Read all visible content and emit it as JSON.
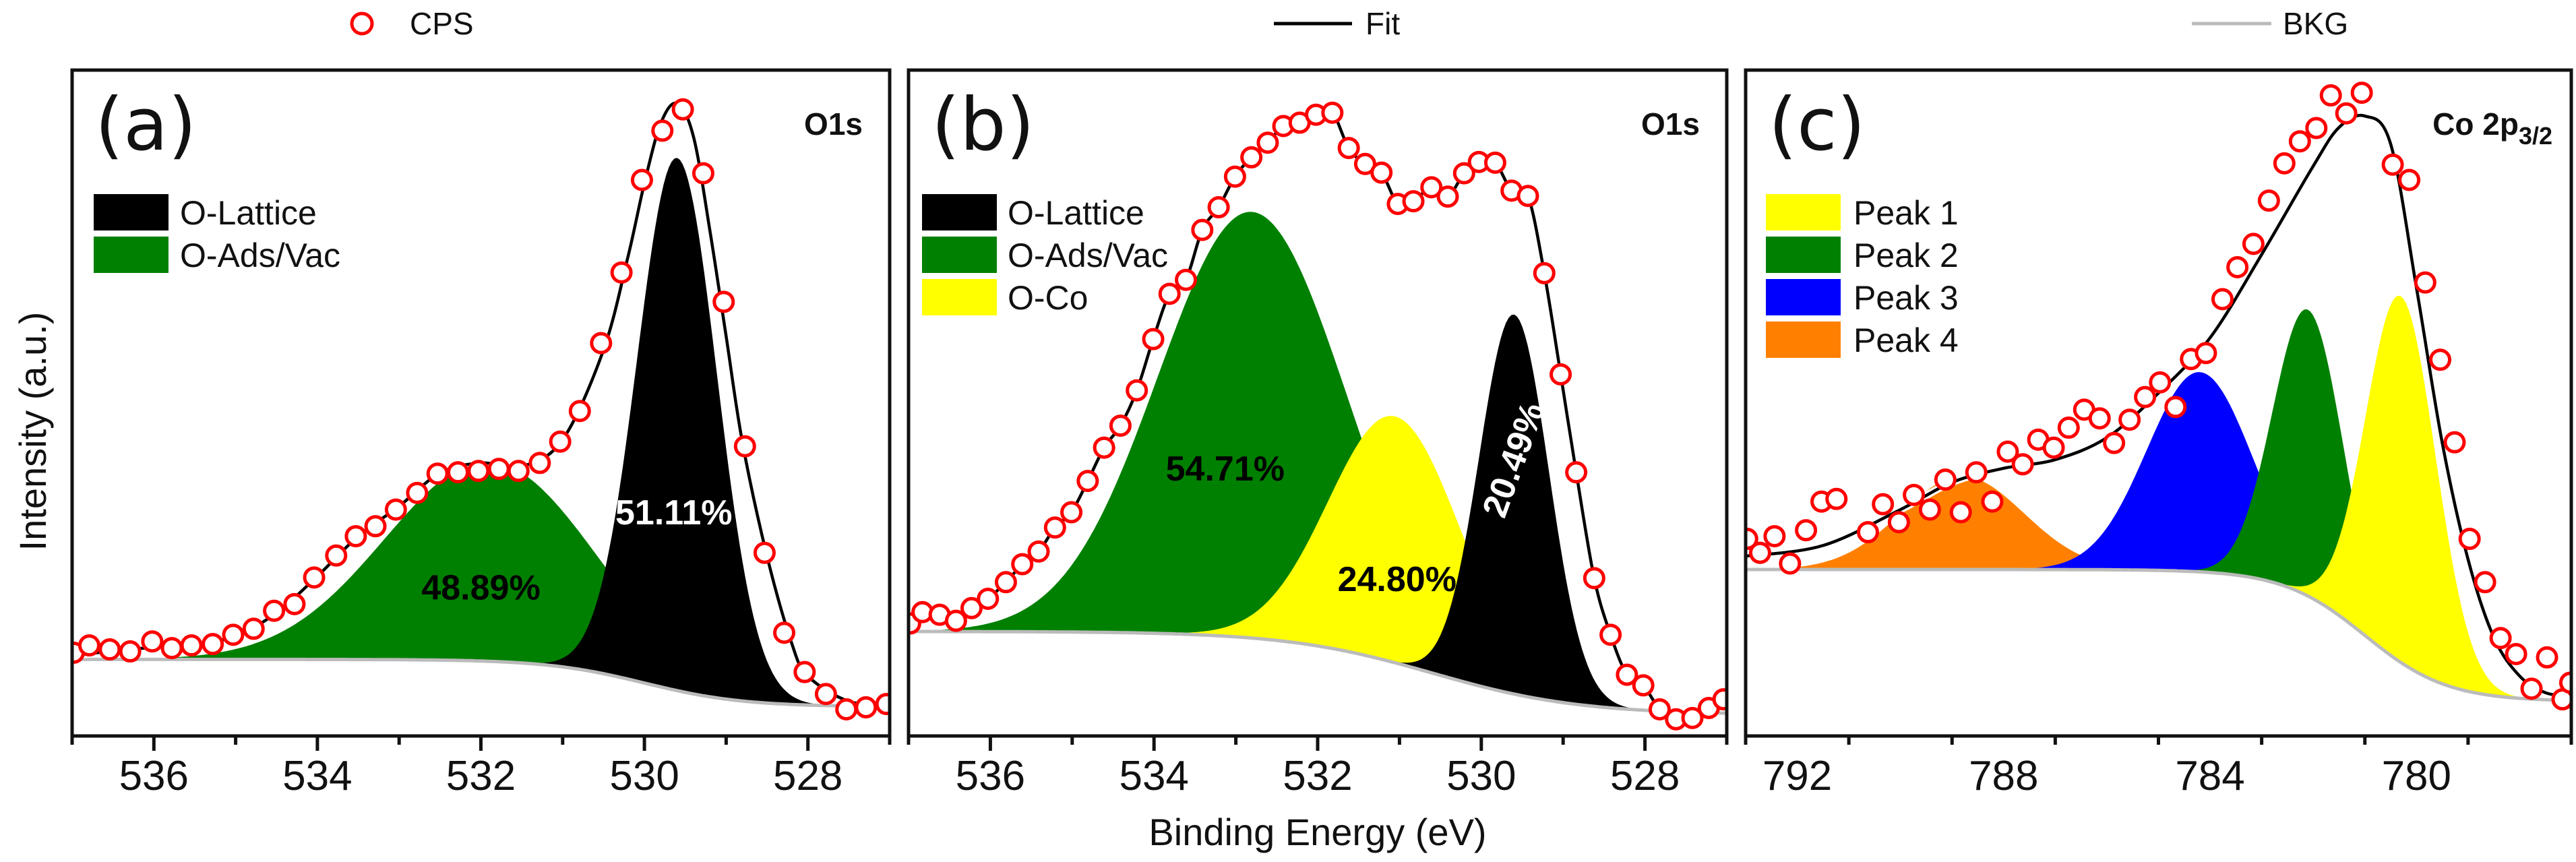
{
  "legend": {
    "cps_label": "CPS",
    "fit_label": "Fit",
    "bkg_label": "BKG",
    "cps_color": "#ff0000",
    "fit_color": "#000000",
    "bkg_color": "#bbbbbb"
  },
  "axes": {
    "xlabel": "Binding Energy (eV)",
    "ylabel": "Intensity (a.u.)"
  },
  "chart_data": [
    {
      "type": "area",
      "panel_label": "(a)",
      "core_level": "O1s",
      "xlim": [
        537,
        527
      ],
      "ylim": [
        0,
        1
      ],
      "xticks": [
        536,
        534,
        532,
        530,
        528
      ],
      "xtick_labels": [
        "536",
        "534",
        "532",
        "530",
        "528"
      ],
      "background": {
        "high": 0.115,
        "low": 0.044,
        "center": 530.0,
        "width": 0.6
      },
      "components": [
        {
          "name": "O-Ads/Vac",
          "color": "#008000",
          "center": 531.9,
          "height": 0.3,
          "fwhm": 3.0,
          "percent": "48.89%",
          "percent_color": "#000000",
          "label_at": [
            532.0,
            0.223
          ]
        },
        {
          "name": "O-Lattice",
          "color": "#000000",
          "center": 529.6,
          "height": 0.8,
          "fwhm": 1.15,
          "percent": "51.11%",
          "percent_color": "#ffffff",
          "label_at": [
            529.64,
            0.336
          ]
        }
      ],
      "legend_order": [
        "O-Lattice",
        "O-Ads/Vac"
      ],
      "cps": {
        "x": [
          536.98,
          536.79,
          536.54,
          536.29,
          536.02,
          535.78,
          535.54,
          535.28,
          535.03,
          534.78,
          534.53,
          534.28,
          534.04,
          533.77,
          533.53,
          533.29,
          533.04,
          532.78,
          532.53,
          532.28,
          532.03,
          531.78,
          531.54,
          531.28,
          531.03,
          530.79,
          530.53,
          530.28,
          530.03,
          529.78,
          529.53,
          529.28,
          529.03,
          528.77,
          528.53,
          528.29,
          528.04,
          527.78,
          527.53,
          527.29,
          527.04
        ],
        "y": [
          0.125,
          0.136,
          0.13,
          0.127,
          0.142,
          0.132,
          0.136,
          0.138,
          0.152,
          0.161,
          0.188,
          0.198,
          0.238,
          0.271,
          0.3,
          0.315,
          0.34,
          0.365,
          0.394,
          0.396,
          0.398,
          0.401,
          0.398,
          0.41,
          0.442,
          0.488,
          0.59,
          0.696,
          0.835,
          0.909,
          0.941,
          0.845,
          0.652,
          0.435,
          0.275,
          0.155,
          0.096,
          0.063,
          0.04,
          0.043,
          0.048
        ]
      },
      "fit": {
        "x": [
          537,
          536.5,
          536,
          535.5,
          535,
          534.5,
          534,
          533.5,
          533,
          532.5,
          532,
          531.5,
          531,
          530.5,
          530.2,
          530,
          529.8,
          529.6,
          529.4,
          529.2,
          529,
          528.8,
          528.5,
          528.2,
          528,
          527.5,
          527
        ],
        "y": [
          0.12,
          0.128,
          0.133,
          0.138,
          0.15,
          0.185,
          0.24,
          0.3,
          0.345,
          0.395,
          0.41,
          0.405,
          0.445,
          0.58,
          0.72,
          0.83,
          0.92,
          0.95,
          0.9,
          0.76,
          0.6,
          0.44,
          0.27,
          0.14,
          0.09,
          0.052,
          0.048
        ]
      }
    },
    {
      "type": "area",
      "panel_label": "(b)",
      "core_level": "O1s",
      "xlim": [
        537,
        527
      ],
      "ylim": [
        0,
        1
      ],
      "xticks": [
        536,
        534,
        532,
        530,
        528
      ],
      "xtick_labels": [
        "536",
        "534",
        "532",
        "530",
        "528"
      ],
      "background": {
        "high": 0.157,
        "low": 0.032,
        "center": 530.6,
        "width": 0.9
      },
      "components": [
        {
          "name": "O-Ads/Vac",
          "color": "#008000",
          "center": 532.8,
          "height": 0.64,
          "fwhm": 2.7,
          "percent": "54.71%",
          "percent_color": "#000000",
          "label_at": [
            533.13,
            0.402
          ]
        },
        {
          "name": "O-Co",
          "color": "#ffff00",
          "center": 531.05,
          "height": 0.37,
          "fwhm": 1.9,
          "percent": "24.80%",
          "percent_color": "#000000",
          "label_at": [
            531.03,
            0.236
          ]
        },
        {
          "name": "O-Lattice",
          "color": "#000000",
          "center": 529.6,
          "height": 0.57,
          "fwhm": 1.0,
          "percent": "20.49%",
          "percent_color": "#ffffff",
          "label_at": [
            529.61,
            0.415
          ],
          "label_rotation": -70
        }
      ],
      "legend_order": [
        "O-Lattice",
        "O-Ads/Vac",
        "O-Co"
      ],
      "cps": {
        "x": [
          536.98,
          536.83,
          536.62,
          536.42,
          536.23,
          536.03,
          535.81,
          535.61,
          535.41,
          535.21,
          535.01,
          534.81,
          534.61,
          534.41,
          534.21,
          534.01,
          533.81,
          533.61,
          533.41,
          533.21,
          533.01,
          532.81,
          532.61,
          532.42,
          532.22,
          532.02,
          531.82,
          531.62,
          531.42,
          531.22,
          531.02,
          530.83,
          530.61,
          530.41,
          530.21,
          530.03,
          529.83,
          529.63,
          529.43,
          529.23,
          529.03,
          528.84,
          528.62,
          528.42,
          528.22,
          528.02,
          527.82,
          527.62,
          527.42,
          527.22,
          527.04
        ],
        "y": [
          0.169,
          0.186,
          0.182,
          0.173,
          0.192,
          0.206,
          0.231,
          0.258,
          0.277,
          0.313,
          0.336,
          0.383,
          0.433,
          0.466,
          0.519,
          0.596,
          0.664,
          0.685,
          0.76,
          0.794,
          0.84,
          0.869,
          0.891,
          0.916,
          0.921,
          0.933,
          0.936,
          0.883,
          0.859,
          0.846,
          0.799,
          0.803,
          0.824,
          0.81,
          0.845,
          0.862,
          0.861,
          0.819,
          0.811,
          0.695,
          0.543,
          0.396,
          0.237,
          0.152,
          0.092,
          0.076,
          0.04,
          0.025,
          0.027,
          0.042,
          0.055
        ]
      }
    },
    {
      "type": "area",
      "panel_label": "(c)",
      "core_level": "Co 2p",
      "core_level_sub": "3/2",
      "xlim": [
        793,
        777
      ],
      "ylim": [
        0,
        1
      ],
      "xticks": [
        792,
        788,
        784,
        780
      ],
      "xtick_labels": [
        "792",
        "788",
        "784",
        "780"
      ],
      "background": {
        "high": 0.25,
        "low": 0.052,
        "center": 781.0,
        "width": 0.8
      },
      "components": [
        {
          "name": "Peak 4",
          "color": "#ff8000",
          "center": 788.8,
          "height": 0.14,
          "fwhm": 2.8
        },
        {
          "name": "Peak 3",
          "color": "#0000ff",
          "center": 784.2,
          "height": 0.3,
          "fwhm": 2.4,
          "visible_below": 787.5
        },
        {
          "name": "Peak 2",
          "color": "#008000",
          "center": 782.1,
          "height": 0.43,
          "fwhm": 1.6
        },
        {
          "name": "Peak 1",
          "color": "#ffff00",
          "center": 780.3,
          "height": 0.55,
          "fwhm": 1.6
        }
      ],
      "legend_order": [
        "Peak 1",
        "Peak 2",
        "Peak 3",
        "Peak 4"
      ],
      "cps": {
        "x": [
          792.97,
          792.72,
          792.44,
          792.14,
          791.83,
          791.53,
          791.24,
          790.63,
          790.34,
          790.03,
          789.74,
          789.43,
          789.13,
          788.83,
          788.53,
          788.22,
          787.92,
          787.63,
          787.33,
          787.03,
          786.74,
          786.44,
          786.14,
          785.86,
          785.56,
          785.26,
          784.97,
          784.67,
          784.37,
          784.08,
          783.76,
          783.47,
          783.16,
          782.86,
          782.56,
          782.26,
          781.94,
          781.66,
          781.36,
          781.06,
          780.46,
          780.14,
          779.83,
          779.54,
          779.26,
          778.97,
          778.67,
          778.37,
          778.07,
          777.77,
          777.47,
          777.17,
          777.02
        ],
        "y": [
          0.296,
          0.275,
          0.3,
          0.259,
          0.309,
          0.352,
          0.356,
          0.306,
          0.348,
          0.321,
          0.362,
          0.34,
          0.385,
          0.336,
          0.396,
          0.352,
          0.427,
          0.408,
          0.445,
          0.433,
          0.463,
          0.49,
          0.477,
          0.44,
          0.475,
          0.509,
          0.531,
          0.494,
          0.566,
          0.575,
          0.656,
          0.704,
          0.739,
          0.804,
          0.86,
          0.893,
          0.913,
          0.962,
          0.935,
          0.966,
          0.858,
          0.835,
          0.681,
          0.565,
          0.441,
          0.296,
          0.231,
          0.147,
          0.123,
          0.071,
          0.118,
          0.055,
          0.08
        ]
      },
      "fit": {
        "x": [
          793,
          791.5,
          790,
          789,
          788,
          787,
          786,
          785,
          784,
          783,
          782,
          781.5,
          781,
          780.5,
          780,
          779.5,
          779,
          778.5,
          778,
          777.5,
          777
        ],
        "y": [
          0.27,
          0.286,
          0.34,
          0.381,
          0.402,
          0.415,
          0.448,
          0.515,
          0.598,
          0.723,
          0.856,
          0.914,
          0.931,
          0.889,
          0.673,
          0.44,
          0.265,
          0.148,
          0.09,
          0.065,
          0.06
        ]
      }
    }
  ]
}
